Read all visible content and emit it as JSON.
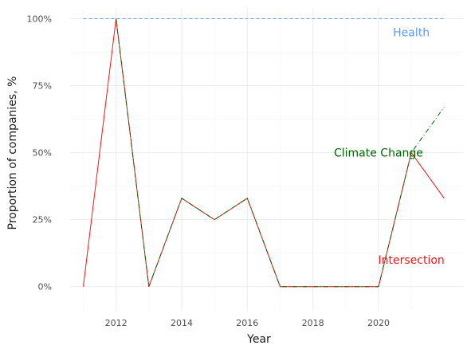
{
  "chart_data": {
    "type": "line",
    "title": "",
    "xlabel": "Year",
    "ylabel": "Proportion of companies, %",
    "xlim": [
      2010.6,
      2022.6
    ],
    "ylim": [
      -0.09,
      1.04
    ],
    "x_ticks": [
      2012,
      2014,
      2016,
      2018,
      2020
    ],
    "y_ticks": [
      0,
      0.25,
      0.5,
      0.75,
      1.0
    ],
    "y_tick_labels": [
      "0%",
      "25%",
      "50%",
      "75%",
      "100%"
    ],
    "x_tick_labels": [
      "2012",
      "2014",
      "2016",
      "2018",
      "2020"
    ],
    "grid": true,
    "legend": "none",
    "series": [
      {
        "name": "Health",
        "color": "#5b9bf0",
        "dash": "4,3",
        "x": [
          2011,
          2012,
          2013,
          2014,
          2015,
          2016,
          2017,
          2018,
          2019,
          2020,
          2021,
          2022
        ],
        "values": [
          1,
          1,
          1,
          1,
          1,
          1,
          1,
          1,
          1,
          1,
          1,
          1
        ]
      },
      {
        "name": "Intersection",
        "color": "#e41a1c",
        "dash": "",
        "x": [
          2011,
          2012,
          2013,
          2014,
          2015,
          2016,
          2017,
          2018,
          2019,
          2020,
          2021,
          2022
        ],
        "values": [
          0,
          1,
          0,
          0.33,
          0.25,
          0.33,
          0,
          0,
          0,
          0,
          0.5,
          0.33
        ]
      },
      {
        "name": "Climate Change",
        "color": "#006400",
        "dash": "6,3,1,3",
        "x": [
          2012,
          2013,
          2014,
          2015,
          2016,
          2017,
          2018,
          2019,
          2020,
          2021,
          2022
        ],
        "values": [
          1,
          0,
          0.33,
          0.25,
          0.33,
          0,
          0,
          0,
          0,
          0.5,
          0.67
        ]
      }
    ],
    "annotations": [
      {
        "text": "Health",
        "x": 2021.0,
        "y": 0.95,
        "color": "#5b9bf0"
      },
      {
        "text": "Climate Change",
        "x": 2020.0,
        "y": 0.5,
        "color": "#006400"
      },
      {
        "text": "Intersection",
        "x": 2021.0,
        "y": 0.1,
        "color": "#e41a1c"
      }
    ]
  }
}
